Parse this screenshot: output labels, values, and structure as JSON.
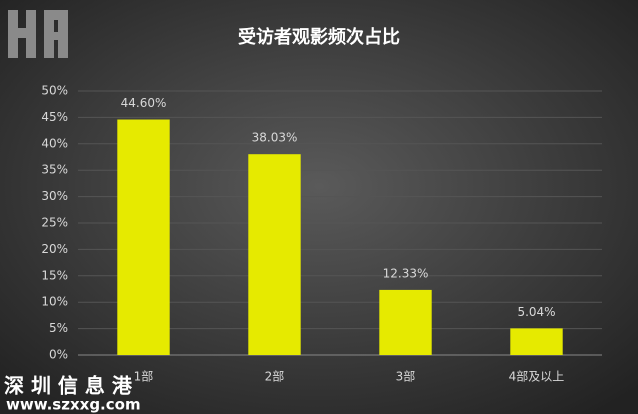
{
  "chart_data": {
    "type": "bar",
    "title": "受访者观影频次占比",
    "categories": [
      "1部",
      "2部",
      "3部",
      "4部及以上"
    ],
    "values": [
      44.6,
      38.03,
      12.33,
      5.04
    ],
    "value_labels": [
      "44.60%",
      "38.03%",
      "12.33%",
      "5.04%"
    ],
    "color": "#e6ea00",
    "ylim": [
      0,
      50
    ],
    "yticks": [
      {
        "value": 0,
        "label": "0%"
      },
      {
        "value": 5,
        "label": "5%"
      },
      {
        "value": 10,
        "label": "10%"
      },
      {
        "value": 15,
        "label": "15%"
      },
      {
        "value": 20,
        "label": "20%"
      },
      {
        "value": 25,
        "label": "25%"
      },
      {
        "value": 30,
        "label": "30%"
      },
      {
        "value": 35,
        "label": "35%"
      },
      {
        "value": 40,
        "label": "40%"
      },
      {
        "value": 45,
        "label": "45%"
      },
      {
        "value": 50,
        "label": "50%"
      }
    ],
    "grid": true,
    "annotations": [
      "深 圳 信 息 港",
      "www.szxxg.com"
    ]
  }
}
